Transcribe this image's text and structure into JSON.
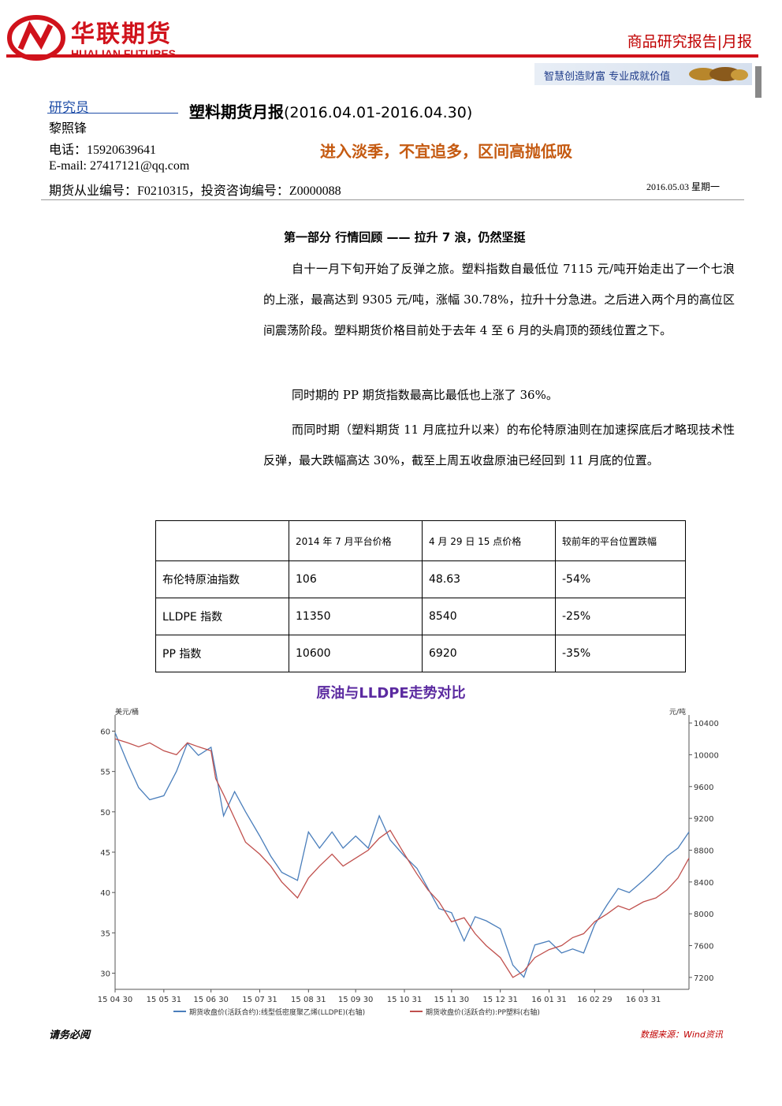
{
  "header": {
    "logo_cn": "华联期货",
    "logo_en": "HUALIAN FUTURES",
    "report_type": "商品研究报告|月报",
    "slogan": "智慧创造财富  专业成就价值"
  },
  "analyst": {
    "label": "研究员",
    "name": "黎照锋",
    "phone": "电话：15920639641",
    "email": "E-mail: 27417121@qq.com",
    "license": "期货从业编号：F0210315，投资咨询编号：Z0000088"
  },
  "report": {
    "title": "塑料期货月报",
    "range": "(2016.04.01-2016.04.30)",
    "headline": "进入淡季，不宜追多，区间高抛低吸",
    "date": "2016.05.03  星期一"
  },
  "body": {
    "section_title": "第一部分    行情回顾    ——    拉升 7 浪，仍然坚挺",
    "p1": "自十一月下旬开始了反弹之旅。塑料指数自最低位 7115 元/吨开始走出了一个七浪的上涨，最高达到 9305 元/吨，涨幅 30.78%，拉升十分急进。之后进入两个月的高位区间震荡阶段。塑料期货价格目前处于去年 4 至 6 月的头肩顶的颈线位置之下。",
    "p2": "同时期的 PP 期货指数最高比最低也上涨了 36%。",
    "p3": "而同时期（塑料期货 11 月底拉升以来）的布伦特原油则在加速探底后才略现技术性反弹，最大跌幅高达 30%，截至上周五收盘原油已经回到 11 月底的位置。"
  },
  "table": {
    "headers": [
      "",
      "2014 年 7 月平台价格",
      "4 月 29 日 15 点价格",
      "较前年的平台位置跌幅"
    ],
    "rows": [
      [
        "布伦特原油指数",
        "106",
        "48.63",
        "-54%"
      ],
      [
        "LLDPE 指数",
        "11350",
        "8540",
        "-25%"
      ],
      [
        "PP 指数",
        "10600",
        "6920",
        "-35%"
      ]
    ]
  },
  "chart_data": {
    "type": "line",
    "title": "原油与LLDPE走势对比",
    "left_unit": "美元/桶",
    "right_unit": "元/吨",
    "x_ticks": [
      "15-04-30",
      "15-05-31",
      "15-06-30",
      "15-07-31",
      "15-08-31",
      "15-09-30",
      "15-10-31",
      "15-11-30",
      "15-12-31",
      "16-01-31",
      "16-02-29",
      "16-03-31"
    ],
    "left_ticks": [
      30,
      35,
      40,
      45,
      50,
      55,
      60
    ],
    "right_ticks": [
      7200,
      7600,
      8000,
      8400,
      8800,
      9200,
      9600,
      10000,
      10400
    ],
    "ylim_left": [
      28,
      62
    ],
    "ylim_right": [
      7050,
      10500
    ],
    "series": [
      {
        "name": "期货收盘价(活跃合约):线型低密度聚乙烯(LLDPE)(右轴)",
        "axis": "right",
        "color": "#4a7ebb",
        "dates": [
          "2015-04-30",
          "2015-05-08",
          "2015-05-15",
          "2015-05-22",
          "2015-05-31",
          "2015-06-08",
          "2015-06-15",
          "2015-06-22",
          "2015-06-30",
          "2015-07-03",
          "2015-07-08",
          "2015-07-15",
          "2015-07-22",
          "2015-07-31",
          "2015-08-07",
          "2015-08-14",
          "2015-08-24",
          "2015-08-31",
          "2015-09-07",
          "2015-09-15",
          "2015-09-22",
          "2015-09-30",
          "2015-10-08",
          "2015-10-15",
          "2015-10-22",
          "2015-10-31",
          "2015-11-08",
          "2015-11-15",
          "2015-11-22",
          "2015-11-30",
          "2015-12-08",
          "2015-12-15",
          "2015-12-22",
          "2015-12-31",
          "2016-01-08",
          "2016-01-15",
          "2016-01-22",
          "2016-01-31",
          "2016-02-08",
          "2016-02-15",
          "2016-02-22",
          "2016-02-29",
          "2016-03-08",
          "2016-03-15",
          "2016-03-22",
          "2016-03-31",
          "2016-04-08",
          "2016-04-15",
          "2016-04-22",
          "2016-04-29"
        ],
        "values": [
          59.8,
          56.0,
          53.0,
          51.5,
          52.0,
          55.0,
          58.5,
          57.0,
          58.0,
          55.0,
          49.5,
          52.5,
          50.0,
          47.0,
          44.5,
          42.5,
          41.5,
          47.5,
          45.5,
          47.5,
          45.5,
          47.0,
          45.5,
          49.5,
          46.5,
          44.5,
          43.0,
          40.5,
          38.0,
          37.5,
          34.0,
          37.0,
          36.5,
          35.5,
          31.0,
          29.5,
          33.5,
          34.0,
          32.5,
          33.0,
          32.5,
          36.0,
          38.5,
          40.5,
          40.0,
          41.5,
          43.0,
          44.5,
          45.5,
          47.5
        ]
      },
      {
        "name": "期货收盘价(活跃合约):PP塑料(右轴)",
        "axis": "right",
        "color": "#c0504d",
        "dates": [
          "2015-04-30",
          "2015-05-08",
          "2015-05-15",
          "2015-05-22",
          "2015-05-31",
          "2015-06-08",
          "2015-06-15",
          "2015-06-22",
          "2015-06-30",
          "2015-07-03",
          "2015-07-08",
          "2015-07-15",
          "2015-07-22",
          "2015-07-31",
          "2015-08-07",
          "2015-08-14",
          "2015-08-24",
          "2015-08-31",
          "2015-09-07",
          "2015-09-15",
          "2015-09-22",
          "2015-09-30",
          "2015-10-08",
          "2015-10-15",
          "2015-10-22",
          "2015-10-31",
          "2015-11-08",
          "2015-11-15",
          "2015-11-22",
          "2015-11-30",
          "2015-12-08",
          "2015-12-15",
          "2015-12-22",
          "2015-12-31",
          "2016-01-08",
          "2016-01-15",
          "2016-01-22",
          "2016-01-31",
          "2016-02-08",
          "2016-02-15",
          "2016-02-22",
          "2016-02-29",
          "2016-03-08",
          "2016-03-15",
          "2016-03-22",
          "2016-03-31",
          "2016-04-08",
          "2016-04-15",
          "2016-04-22",
          "2016-04-29"
        ],
        "values": [
          10200,
          10150,
          10100,
          10150,
          10050,
          10000,
          10150,
          10100,
          10050,
          9700,
          9500,
          9200,
          8900,
          8750,
          8600,
          8400,
          8200,
          8450,
          8600,
          8750,
          8600,
          8700,
          8800,
          8950,
          9050,
          8750,
          8500,
          8300,
          8150,
          7900,
          7950,
          7750,
          7600,
          7450,
          7200,
          7280,
          7450,
          7550,
          7600,
          7700,
          7750,
          7900,
          8000,
          8100,
          8050,
          8150,
          8200,
          8300,
          8450,
          8700
        ]
      }
    ],
    "legend_placement": "bottom",
    "source": "数据来源：Wind资讯"
  },
  "footer": {
    "left": "请务必阅"
  }
}
